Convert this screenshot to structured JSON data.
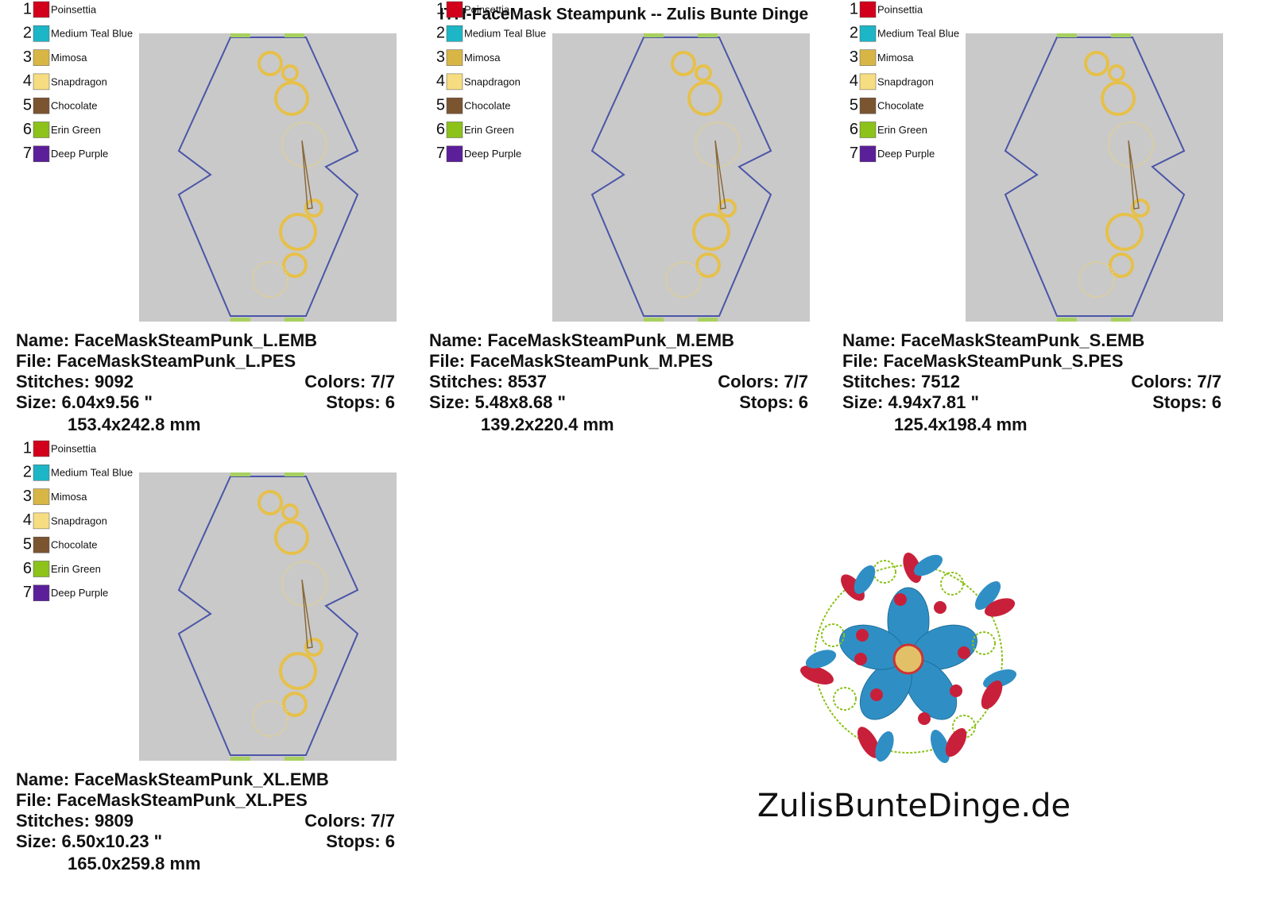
{
  "title": "ITH-FaceMask Steampunk -- Zulis Bunte Dinge",
  "panels": [
    {
      "palette": [
        {
          "number": 1,
          "name": "Poinsettia",
          "color": "#d2001a"
        },
        {
          "number": 2,
          "name": "Medium Teal Blue",
          "color": "#1cb6c6"
        },
        {
          "number": 3,
          "name": "Mimosa",
          "color": "#d8b646"
        },
        {
          "number": 4,
          "name": "Snapdragon",
          "color": "#f6dd82"
        },
        {
          "number": 5,
          "name": "Chocolate",
          "color": "#7b5430"
        },
        {
          "number": 6,
          "name": "Erin Green",
          "color": "#8cc21a"
        },
        {
          "number": 7,
          "name": "Deep Purple",
          "color": "#5b1f99"
        }
      ],
      "name": "Name: FaceMaskSteamPunk_L.EMB",
      "file": "File: FaceMaskSteamPunk_L.PES",
      "stitches": "Stitches: 9092",
      "colors": "Colors: 7/7",
      "size": "Size: 6.04x9.56 \"",
      "stops": "Stops: 6",
      "mm": "153.4x242.8 mm"
    },
    {
      "palette": [
        {
          "number": 1,
          "name": "Poinsettia",
          "color": "#d2001a"
        },
        {
          "number": 2,
          "name": "Medium Teal Blue",
          "color": "#1cb6c6"
        },
        {
          "number": 3,
          "name": "Mimosa",
          "color": "#d8b646"
        },
        {
          "number": 4,
          "name": "Snapdragon",
          "color": "#f6dd82"
        },
        {
          "number": 5,
          "name": "Chocolate",
          "color": "#7b5430"
        },
        {
          "number": 6,
          "name": "Erin Green",
          "color": "#8cc21a"
        },
        {
          "number": 7,
          "name": "Deep Purple",
          "color": "#5b1f99"
        }
      ],
      "name": "Name: FaceMaskSteamPunk_M.EMB",
      "file": "File: FaceMaskSteamPunk_M.PES",
      "stitches": "Stitches: 8537",
      "colors": "Colors: 7/7",
      "size": "Size: 5.48x8.68 \"",
      "stops": "Stops: 6",
      "mm": "139.2x220.4 mm"
    },
    {
      "palette": [
        {
          "number": 1,
          "name": "Poinsettia",
          "color": "#d2001a"
        },
        {
          "number": 2,
          "name": "Medium Teal Blue",
          "color": "#1cb6c6"
        },
        {
          "number": 3,
          "name": "Mimosa",
          "color": "#d8b646"
        },
        {
          "number": 4,
          "name": "Snapdragon",
          "color": "#f6dd82"
        },
        {
          "number": 5,
          "name": "Chocolate",
          "color": "#7b5430"
        },
        {
          "number": 6,
          "name": "Erin Green",
          "color": "#8cc21a"
        },
        {
          "number": 7,
          "name": "Deep Purple",
          "color": "#5b1f99"
        }
      ],
      "name": "Name: FaceMaskSteamPunk_S.EMB",
      "file": "File: FaceMaskSteamPunk_S.PES",
      "stitches": "Stitches: 7512",
      "colors": "Colors: 7/7",
      "size": "Size: 4.94x7.81 \"",
      "stops": "Stops: 6",
      "mm": "125.4x198.4 mm"
    },
    {
      "palette": [
        {
          "number": 1,
          "name": "Poinsettia",
          "color": "#d2001a"
        },
        {
          "number": 2,
          "name": "Medium Teal Blue",
          "color": "#1cb6c6"
        },
        {
          "number": 3,
          "name": "Mimosa",
          "color": "#d8b646"
        },
        {
          "number": 4,
          "name": "Snapdragon",
          "color": "#f6dd82"
        },
        {
          "number": 5,
          "name": "Chocolate",
          "color": "#7b5430"
        },
        {
          "number": 6,
          "name": "Erin Green",
          "color": "#8cc21a"
        },
        {
          "number": 7,
          "name": "Deep Purple",
          "color": "#5b1f99"
        }
      ],
      "name": "Name: FaceMaskSteamPunk_XL.EMB",
      "file": "File: FaceMaskSteamPunk_XL.PES",
      "stitches": "Stitches: 9809",
      "colors": "Colors: 7/7",
      "size": "Size: 6.50x10.23 \"",
      "stops": "Stops: 6",
      "mm": "165.0x259.8 mm"
    }
  ],
  "logo": "ZulisBunteDinge.de"
}
